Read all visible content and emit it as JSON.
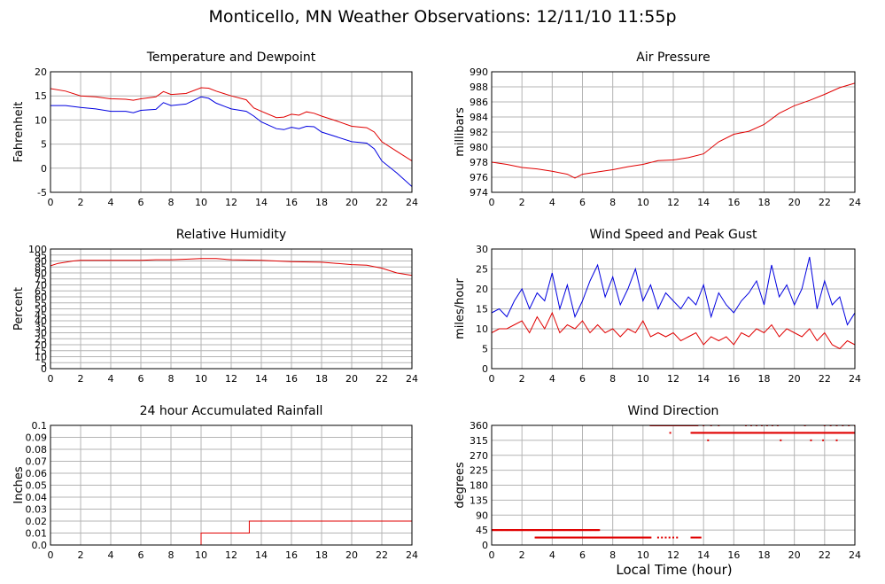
{
  "title": "Monticello, MN Weather Observations: 12/11/10 11:55p",
  "x_axis_title": "Local Time (hour)",
  "colors": {
    "red": "#e00000",
    "blue": "#0000e0",
    "grid": "#b4b4b4",
    "frame": "#000000"
  },
  "chart_data": [
    {
      "type": "line",
      "title": "Temperature and Dewpoint",
      "ylabel": "Fahrenheit",
      "xlim": [
        0,
        24
      ],
      "ylim": [
        -5,
        20
      ],
      "xticks": [
        0,
        2,
        4,
        6,
        8,
        10,
        12,
        14,
        16,
        18,
        20,
        22,
        24
      ],
      "yticks": [
        -5,
        0,
        5,
        10,
        15,
        20
      ],
      "series": [
        {
          "color": "#e00000",
          "x": [
            0,
            1,
            2,
            3,
            4,
            5,
            5.5,
            6,
            7,
            7.5,
            8,
            9,
            10,
            10.5,
            11,
            12,
            13,
            13.5,
            14,
            15,
            15.5,
            16,
            16.5,
            17,
            17.5,
            18,
            19,
            20,
            21,
            21.5,
            22,
            23,
            24
          ],
          "values": [
            16.5,
            16,
            15,
            14.8,
            14.4,
            14.3,
            14.1,
            14.4,
            14.8,
            15.9,
            15.3,
            15.5,
            16.7,
            16.6,
            16,
            15,
            14.2,
            12.5,
            11.8,
            10.5,
            10.6,
            11.2,
            11,
            11.7,
            11.4,
            10.8,
            9.8,
            8.7,
            8.4,
            7.5,
            5.5,
            3.5,
            1.5
          ]
        },
        {
          "color": "#0000e0",
          "x": [
            0,
            1,
            2,
            3,
            4,
            5,
            5.5,
            6,
            7,
            7.5,
            8,
            9,
            10,
            10.5,
            11,
            12,
            13,
            13.5,
            14,
            15,
            15.5,
            16,
            16.5,
            17,
            17.5,
            18,
            19,
            20,
            21,
            21.5,
            22,
            23,
            24
          ],
          "values": [
            13,
            13,
            12.6,
            12.3,
            11.8,
            11.8,
            11.5,
            12,
            12.2,
            13.6,
            13,
            13.3,
            14.8,
            14.5,
            13.5,
            12.3,
            11.8,
            10.8,
            9.6,
            8.2,
            8,
            8.5,
            8.2,
            8.7,
            8.6,
            7.5,
            6.5,
            5.5,
            5.2,
            4,
            1.5,
            -1,
            -3.8
          ]
        }
      ]
    },
    {
      "type": "line",
      "title": "Air Pressure",
      "ylabel": "millibars",
      "xlim": [
        0,
        24
      ],
      "ylim": [
        974,
        990
      ],
      "xticks": [
        0,
        2,
        4,
        6,
        8,
        10,
        12,
        14,
        16,
        18,
        20,
        22,
        24
      ],
      "yticks": [
        974,
        976,
        978,
        980,
        982,
        984,
        986,
        988,
        990
      ],
      "series": [
        {
          "color": "#e00000",
          "x": [
            0,
            1,
            2,
            3,
            4,
            5,
            5.5,
            6,
            7,
            8,
            9,
            10,
            11,
            12,
            13,
            14,
            15,
            16,
            17,
            18,
            19,
            20,
            21,
            22,
            23,
            24
          ],
          "values": [
            978,
            977.7,
            977.3,
            977.1,
            976.8,
            976.4,
            975.9,
            976.4,
            976.7,
            977,
            977.4,
            977.7,
            978.2,
            978.3,
            978.6,
            979.1,
            980.7,
            981.7,
            982.1,
            983,
            984.5,
            985.5,
            986.2,
            987,
            987.9,
            988.5
          ]
        }
      ]
    },
    {
      "type": "line",
      "title": "Relative Humidity",
      "ylabel": "Percent",
      "xlim": [
        0,
        24
      ],
      "ylim": [
        0,
        100
      ],
      "xticks": [
        0,
        2,
        4,
        6,
        8,
        10,
        12,
        14,
        16,
        18,
        20,
        22,
        24
      ],
      "yticks": [
        0,
        5,
        10,
        15,
        20,
        25,
        30,
        35,
        40,
        45,
        50,
        55,
        60,
        65,
        70,
        75,
        80,
        85,
        90,
        95,
        100
      ],
      "series": [
        {
          "color": "#e00000",
          "x": [
            0,
            0.5,
            1,
            1.5,
            2,
            4,
            6,
            7,
            8,
            9,
            10,
            11,
            12,
            14,
            16,
            18,
            19,
            20,
            21,
            22,
            23,
            24
          ],
          "values": [
            86,
            88,
            89,
            90,
            90.5,
            90.5,
            90.5,
            91,
            91,
            91.5,
            92,
            92,
            91,
            90.5,
            89.5,
            89,
            88,
            87,
            86.5,
            84,
            80,
            78
          ]
        }
      ]
    },
    {
      "type": "line",
      "title": "Wind Speed and Peak Gust",
      "ylabel": "miles/hour",
      "xlim": [
        0,
        24
      ],
      "ylim": [
        0,
        30
      ],
      "xticks": [
        0,
        2,
        4,
        6,
        8,
        10,
        12,
        14,
        16,
        18,
        20,
        22,
        24
      ],
      "yticks": [
        0,
        5,
        10,
        15,
        20,
        25,
        30
      ],
      "series": [
        {
          "color": "#0000e0",
          "x": [
            0,
            0.5,
            1,
            1.5,
            2,
            2.5,
            3,
            3.5,
            4,
            4.5,
            5,
            5.5,
            6,
            6.5,
            7,
            7.5,
            8,
            8.5,
            9,
            9.5,
            10,
            10.5,
            11,
            11.5,
            12,
            12.5,
            13,
            13.5,
            14,
            14.5,
            15,
            15.5,
            16,
            16.5,
            17,
            17.5,
            18,
            18.5,
            19,
            19.5,
            20,
            20.5,
            21,
            21.5,
            22,
            22.5,
            23,
            23.5,
            24
          ],
          "values": [
            14,
            15,
            13,
            17,
            20,
            15,
            19,
            17,
            24,
            15,
            21,
            13,
            17,
            22,
            26,
            18,
            23,
            16,
            20,
            25,
            17,
            21,
            15,
            19,
            17,
            15,
            18,
            16,
            21,
            13,
            19,
            16,
            14,
            17,
            19,
            22,
            16,
            26,
            18,
            21,
            16,
            20,
            28,
            15,
            22,
            16,
            18,
            11,
            14
          ]
        },
        {
          "color": "#e00000",
          "x": [
            0,
            0.5,
            1,
            1.5,
            2,
            2.5,
            3,
            3.5,
            4,
            4.5,
            5,
            5.5,
            6,
            6.5,
            7,
            7.5,
            8,
            8.5,
            9,
            9.5,
            10,
            10.5,
            11,
            11.5,
            12,
            12.5,
            13,
            13.5,
            14,
            14.5,
            15,
            15.5,
            16,
            16.5,
            17,
            17.5,
            18,
            18.5,
            19,
            19.5,
            20,
            20.5,
            21,
            21.5,
            22,
            22.5,
            23,
            23.5,
            24
          ],
          "values": [
            9,
            10,
            10,
            11,
            12,
            9,
            13,
            10,
            14,
            9,
            11,
            10,
            12,
            9,
            11,
            9,
            10,
            8,
            10,
            9,
            12,
            8,
            9,
            8,
            9,
            7,
            8,
            9,
            6,
            8,
            7,
            8,
            6,
            9,
            8,
            10,
            9,
            11,
            8,
            10,
            9,
            8,
            10,
            7,
            9,
            6,
            5,
            7,
            6
          ]
        }
      ]
    },
    {
      "type": "line",
      "title": "24 hour Accumulated Rainfall",
      "ylabel": "Inches",
      "xlim": [
        0,
        24
      ],
      "ylim": [
        0,
        0.1
      ],
      "xticks": [
        0,
        2,
        4,
        6,
        8,
        10,
        12,
        14,
        16,
        18,
        20,
        22,
        24
      ],
      "yticks": [
        0.0,
        0.01,
        0.02,
        0.03,
        0.04,
        0.05,
        0.06,
        0.07,
        0.08,
        0.09,
        0.1
      ],
      "ytick_labels": [
        "0.0",
        "0.01",
        "0.02",
        "0.03",
        "0.04",
        "0.05",
        "0.06",
        "0.07",
        "0.08",
        "0.09",
        "0.1"
      ],
      "series": [
        {
          "color": "#e00000",
          "x": [
            0,
            10,
            10,
            13.2,
            13.2,
            24
          ],
          "values": [
            0,
            0,
            0.01,
            0.01,
            0.02,
            0.02
          ]
        }
      ]
    },
    {
      "type": "scatter",
      "title": "Wind Direction",
      "ylabel": "degrees",
      "xlabel": "Local Time (hour)",
      "xlim": [
        0,
        24
      ],
      "ylim": [
        0,
        360
      ],
      "xticks": [
        0,
        2,
        4,
        6,
        8,
        10,
        12,
        14,
        16,
        18,
        20,
        22,
        24
      ],
      "yticks": [
        0,
        45,
        90,
        135,
        180,
        225,
        270,
        315,
        360
      ],
      "clusters": [
        {
          "color": "#e00000",
          "y": 45,
          "x_from": 0,
          "x_to": 7.1,
          "step": 0.05
        },
        {
          "color": "#e00000",
          "y": 22.5,
          "x_from": 2.9,
          "x_to": 10.5,
          "step": 0.05
        },
        {
          "color": "#e00000",
          "y": 22.5,
          "x_from": 11,
          "x_to": 12.4,
          "step": 0.25
        },
        {
          "color": "#e00000",
          "y": 22.5,
          "x_from": 13.2,
          "x_to": 13.8,
          "step": 0.1
        },
        {
          "color": "#e00000",
          "y": 360,
          "x_from": 10.5,
          "x_to": 13.6,
          "step": 0.05
        },
        {
          "color": "#e00000",
          "y": 337.5,
          "x_from": 13.2,
          "x_to": 24,
          "step": 0.05
        },
        {
          "color": "#e00000",
          "y": 360,
          "x_from": 14,
          "x_to": 15,
          "step": 0.5
        },
        {
          "color": "#e00000",
          "y": 360,
          "x_from": 16.8,
          "x_to": 18.9,
          "step": 0.35
        },
        {
          "color": "#e00000",
          "y": 360,
          "x_from": 22,
          "x_to": 24,
          "step": 0.4
        }
      ],
      "points": [
        {
          "x": 11.8,
          "y": 337.5
        },
        {
          "x": 14.3,
          "y": 315
        },
        {
          "x": 19.1,
          "y": 315
        },
        {
          "x": 21.1,
          "y": 315
        },
        {
          "x": 21.9,
          "y": 315
        },
        {
          "x": 22.8,
          "y": 315
        },
        {
          "x": 20.7,
          "y": 360
        }
      ]
    }
  ]
}
